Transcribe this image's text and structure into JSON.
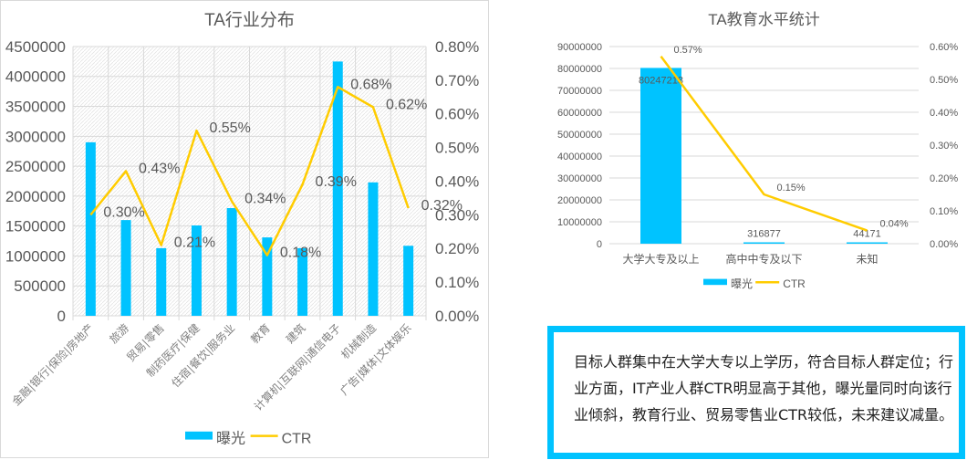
{
  "colors": {
    "bar": "#00c3ff",
    "line": "#ffcc00",
    "text": "#595959",
    "grid": "#d9d9d9"
  },
  "chart_data": [
    {
      "type": "bar+line",
      "title": "TA行业分布",
      "categories": [
        "金融|银行|保险|房地产",
        "旅游",
        "贸易|零售",
        "制药医疗|保健",
        "住宿|餐饮|服务业",
        "教育",
        "建筑",
        "计算机|互联网|通信电子",
        "机械制造",
        "广告|媒体|文体娱乐"
      ],
      "series": [
        {
          "name": "曝光",
          "axis": "left",
          "type": "bar",
          "values": [
            2900000,
            1600000,
            1130000,
            1510000,
            1800000,
            1310000,
            1130000,
            4250000,
            2230000,
            1170000
          ]
        },
        {
          "name": "CTR",
          "axis": "right",
          "type": "line",
          "values": [
            0.3,
            0.43,
            0.21,
            0.55,
            0.34,
            0.18,
            0.39,
            0.68,
            0.62,
            0.32
          ],
          "labels": [
            "0.30%",
            "0.43%",
            "0.21%",
            "0.55%",
            "0.34%",
            "0.18%",
            "0.39%",
            "0.68%",
            "0.62%",
            "0.32%"
          ]
        }
      ],
      "ylim": [
        0,
        4500000
      ],
      "yticks": [
        "0",
        "500000",
        "1000000",
        "1500000",
        "2000000",
        "2500000",
        "3000000",
        "3500000",
        "4000000",
        "4500000"
      ],
      "y2lim": [
        0,
        0.8
      ],
      "y2ticks": [
        "0.00%",
        "0.10%",
        "0.20%",
        "0.30%",
        "0.40%",
        "0.50%",
        "0.60%",
        "0.70%",
        "0.80%"
      ],
      "legend": [
        "曝光",
        "CTR"
      ],
      "legend_position": "bottom",
      "grid": true
    },
    {
      "type": "bar+line",
      "title": "TA教育水平统计",
      "categories": [
        "大学大专及以上",
        "高中中专及以下",
        "未知"
      ],
      "series": [
        {
          "name": "曝光",
          "axis": "left",
          "type": "bar",
          "values": [
            80247218,
            316877,
            44171
          ],
          "labels": [
            "80247218",
            "316877",
            "44171"
          ]
        },
        {
          "name": "CTR",
          "axis": "right",
          "type": "line",
          "values": [
            0.57,
            0.15,
            0.04
          ],
          "labels": [
            "0.57%",
            "0.15%",
            "0.04%"
          ]
        }
      ],
      "ylim": [
        0,
        90000000
      ],
      "yticks": [
        "0",
        "10000000",
        "20000000",
        "30000000",
        "40000000",
        "50000000",
        "60000000",
        "70000000",
        "80000000",
        "90000000"
      ],
      "y2lim": [
        0,
        0.6
      ],
      "y2ticks": [
        "0.00%",
        "0.10%",
        "0.20%",
        "0.30%",
        "0.40%",
        "0.50%",
        "0.60%"
      ],
      "legend": [
        "曝光",
        "CTR"
      ],
      "legend_position": "bottom",
      "grid": true
    }
  ],
  "note": {
    "text": "目标人群集中在大学大专以上学历，符合目标人群定位；行业方面，IT产业人群CTR明显高于其他，曝光量同时向该行业倾斜，教育行业、贸易零售业CTR较低，未来建议减量。"
  }
}
